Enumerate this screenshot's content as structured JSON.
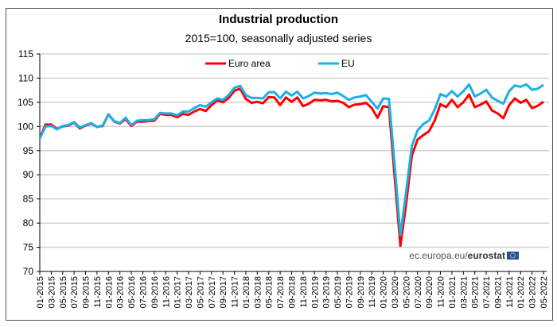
{
  "chart_data": {
    "type": "line",
    "title": "Industrial production",
    "subtitle": "2015=100, seasonally adjusted series",
    "xlabel": "",
    "ylabel": "",
    "ylim": [
      70,
      115
    ],
    "yticks": [
      70,
      75,
      80,
      85,
      90,
      95,
      100,
      105,
      110,
      115
    ],
    "grid": true,
    "legend_position": "top-center",
    "source": {
      "prefix": "ec.europa.eu/",
      "brand": "eurostat"
    },
    "x_tick_labels": [
      "01-2015",
      "03-2015",
      "05-2015",
      "07-2015",
      "09-2015",
      "11-2015",
      "01-2016",
      "03-2016",
      "05-2016",
      "07-2016",
      "09-2016",
      "11-2016",
      "01-2017",
      "03-2017",
      "05-2017",
      "07-2017",
      "09-2017",
      "11-2017",
      "01-2018",
      "03-2018",
      "05-2018",
      "07-2018",
      "09-2018",
      "11-2018",
      "01-2019",
      "03-2019",
      "05-2019",
      "07-2019",
      "09-2019",
      "11-2019",
      "01-2020",
      "03-2020",
      "05-2020",
      "07-2020",
      "09-2020",
      "11-2020",
      "01-2021",
      "03-2021",
      "05-2021",
      "07-2021",
      "09-2021",
      "11-2021",
      "01-2022",
      "03-2022",
      "05-2022"
    ],
    "x_start": "01-2015",
    "x_end": "05-2022",
    "series": [
      {
        "name": "Euro area",
        "color": "#ff0000",
        "values": [
          97.6,
          100.4,
          100.4,
          99.5,
          100.0,
          100.2,
          100.8,
          99.6,
          100.2,
          100.6,
          99.9,
          100.1,
          102.5,
          101.0,
          100.6,
          101.5,
          100.1,
          101.0,
          101.0,
          101.1,
          101.2,
          102.6,
          102.4,
          102.4,
          101.9,
          102.6,
          102.4,
          103.1,
          103.6,
          103.2,
          104.4,
          105.4,
          105.0,
          105.9,
          107.4,
          107.8,
          105.7,
          104.9,
          105.1,
          104.8,
          106.1,
          106.0,
          104.4,
          106.0,
          105.1,
          106.0,
          104.2,
          104.7,
          105.5,
          105.4,
          105.5,
          105.2,
          105.3,
          104.9,
          104.0,
          104.5,
          104.6,
          104.9,
          103.8,
          101.8,
          104.2,
          104.0,
          89.5,
          75.3,
          84.0,
          94.0,
          97.3,
          98.2,
          99.0,
          101.2,
          104.6,
          104.0,
          105.5,
          104.0,
          105.0,
          106.6,
          104.0,
          104.5,
          105.2,
          103.3,
          102.7,
          101.7,
          104.4,
          105.8,
          104.9,
          105.5,
          103.8,
          104.3,
          105.1
        ]
      },
      {
        "name": "EU",
        "color": "#1ab0e8",
        "values": [
          97.5,
          100.0,
          100.1,
          99.4,
          100.1,
          100.3,
          100.9,
          99.8,
          100.3,
          100.7,
          99.9,
          100.2,
          102.5,
          101.1,
          100.7,
          101.8,
          100.3,
          101.2,
          101.3,
          101.3,
          101.5,
          102.8,
          102.7,
          102.7,
          102.3,
          103.1,
          103.1,
          103.8,
          104.4,
          104.1,
          105.0,
          105.8,
          105.5,
          106.5,
          108.0,
          108.4,
          106.5,
          105.9,
          105.9,
          105.8,
          107.1,
          107.1,
          105.8,
          107.2,
          106.4,
          107.2,
          105.8,
          106.3,
          107.0,
          106.8,
          106.9,
          106.7,
          107.0,
          106.3,
          105.5,
          106.0,
          106.2,
          106.5,
          105.1,
          103.7,
          105.8,
          105.7,
          92.0,
          77.5,
          86.5,
          96.0,
          99.2,
          100.5,
          101.2,
          103.5,
          106.7,
          106.2,
          107.3,
          106.2,
          107.3,
          108.7,
          106.2,
          106.8,
          107.6,
          106.0,
          105.3,
          104.7,
          107.3,
          108.5,
          108.2,
          108.7,
          107.6,
          107.8,
          108.6
        ]
      }
    ]
  }
}
